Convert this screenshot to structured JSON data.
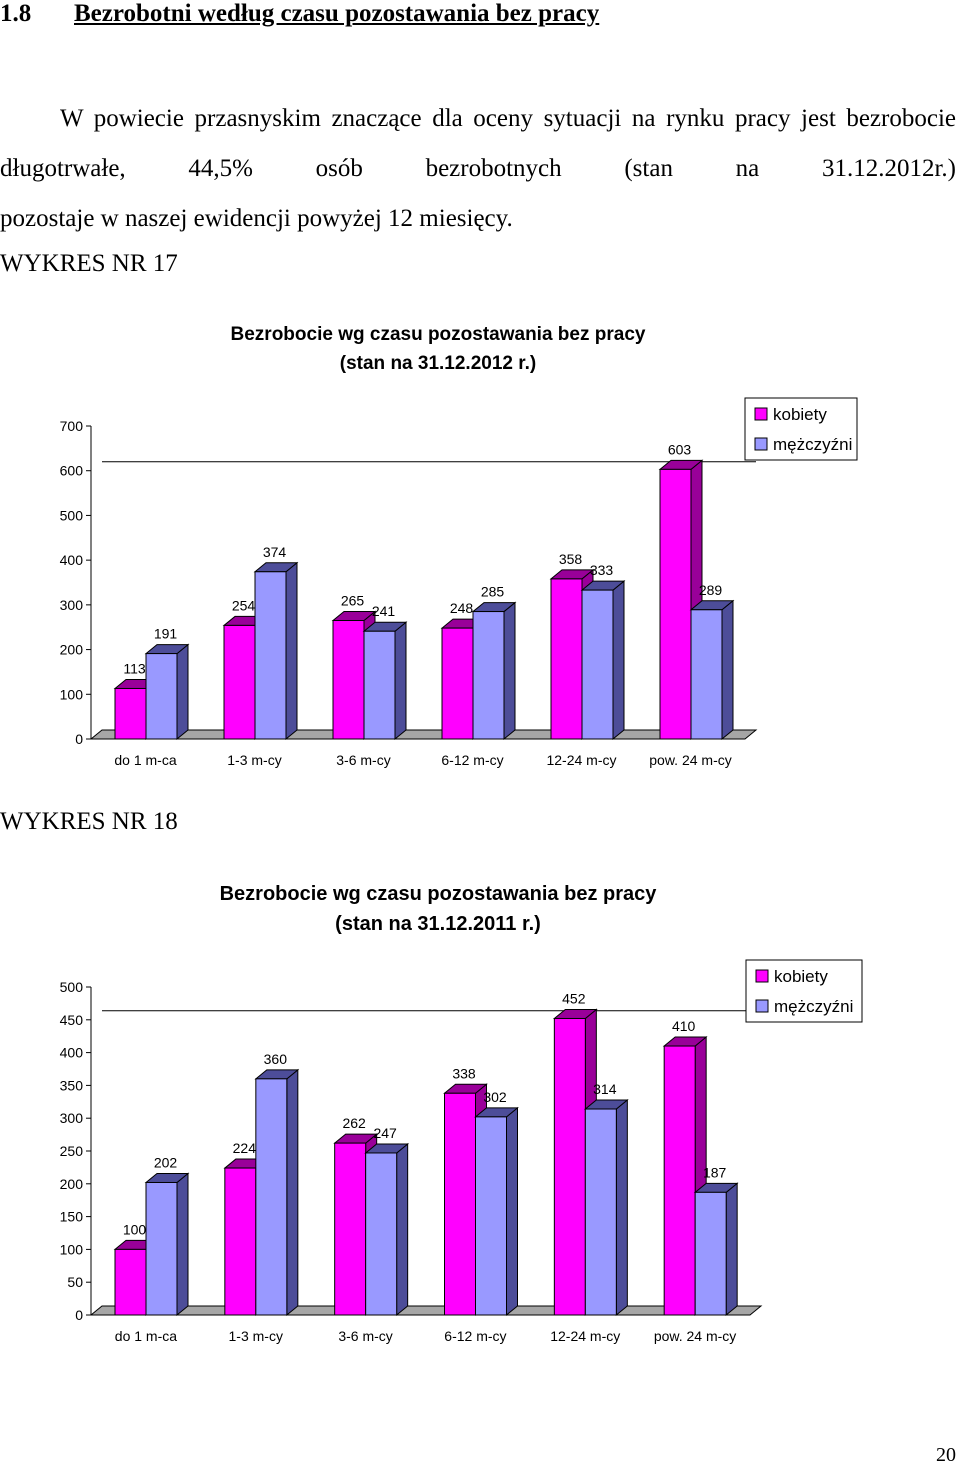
{
  "section": {
    "number": "1.8",
    "title": "Bezrobotni według czasu pozostawania bez pracy"
  },
  "paragraph": {
    "line1": "W powiecie przasnyskim znaczące dla oceny sytuacji na rynku pracy jest bezrobocie długotrwałe, 44,5% osób bezrobotnych (stan na 31.12.2012r.)",
    "line2": "pozostaje w naszej ewidencji powyżej 12 miesięcy."
  },
  "figures": [
    {
      "label": "WYKRES NR 17"
    },
    {
      "label": "WYKRES NR 18"
    }
  ],
  "page_number": "20",
  "colors": {
    "kobiety": "#ff00ff",
    "kobiety_dark": "#990099",
    "mezczyzni": "#9999ff",
    "mezczyzni_dark": "#4d4d99"
  },
  "chart_data": [
    {
      "type": "bar",
      "title": "Bezrobocie wg czasu pozostawania bez pracy",
      "subtitle": "(stan na 31.12.2012 r.)",
      "categories": [
        "do 1 m-ca",
        "1-3 m-cy",
        "3-6 m-cy",
        "6-12 m-cy",
        "12-24 m-cy",
        "pow. 24 m-cy"
      ],
      "series": [
        {
          "name": "kobiety",
          "values": [
            113,
            254,
            265,
            248,
            358,
            603
          ]
        },
        {
          "name": "mężczyźni",
          "values": [
            191,
            374,
            241,
            285,
            333,
            289
          ]
        }
      ],
      "ylim": [
        0,
        700
      ],
      "yticks": [
        0,
        100,
        200,
        300,
        400,
        500,
        600,
        700
      ],
      "legend": "top-right",
      "grid": false
    },
    {
      "type": "bar",
      "title": "Bezrobocie wg czasu pozostawania bez pracy",
      "subtitle": "(stan na 31.12.2011 r.)",
      "categories": [
        "do 1 m-ca",
        "1-3 m-cy",
        "3-6 m-cy",
        "6-12 m-cy",
        "12-24 m-cy",
        "pow. 24 m-cy"
      ],
      "series": [
        {
          "name": "kobiety",
          "values": [
            100,
            224,
            262,
            338,
            452,
            410
          ]
        },
        {
          "name": "mężczyźni",
          "values": [
            202,
            360,
            247,
            302,
            314,
            187
          ]
        }
      ],
      "ylim": [
        0,
        500
      ],
      "yticks": [
        0,
        50,
        100,
        150,
        200,
        250,
        300,
        350,
        400,
        450,
        500
      ],
      "legend": "top-right",
      "grid": false
    }
  ]
}
